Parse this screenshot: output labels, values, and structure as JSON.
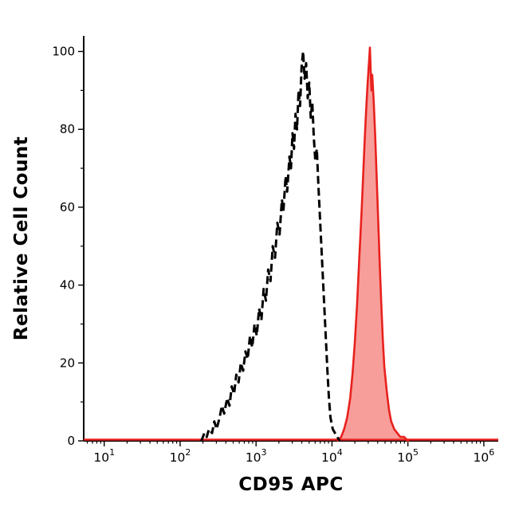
{
  "chart_data": {
    "type": "area",
    "title": "",
    "xlabel": "CD95 APC",
    "ylabel": "Relative Cell Count",
    "x_scale": "log",
    "xlim_log": [
      0.73,
      6.19
    ],
    "ylim": [
      0,
      104
    ],
    "x_ticks": [
      {
        "base": "10",
        "exp": "1",
        "value": 1
      },
      {
        "base": "10",
        "exp": "2",
        "value": 2
      },
      {
        "base": "10",
        "exp": "3",
        "value": 3
      },
      {
        "base": "10",
        "exp": "4",
        "value": 4
      },
      {
        "base": "10",
        "exp": "5",
        "value": 5
      },
      {
        "base": "10",
        "exp": "6",
        "value": 6
      }
    ],
    "y_ticks_major": [
      0,
      20,
      40,
      60,
      80,
      100
    ],
    "y_ticks_minor": [
      10,
      30,
      50,
      70,
      90
    ],
    "grid": false,
    "legend": "none",
    "colors": {
      "axis": "#000000",
      "black_dashed": "#000000",
      "red_stroke": "#e8211d",
      "red_fill": "rgba(240,62,55,0.5)"
    },
    "series": [
      {
        "name": "black_dashed_histogram",
        "style": "dashed",
        "points": [
          [
            2.28,
            0
          ],
          [
            2.32,
            2
          ],
          [
            2.35,
            1
          ],
          [
            2.38,
            3
          ],
          [
            2.42,
            2
          ],
          [
            2.45,
            5
          ],
          [
            2.48,
            3
          ],
          [
            2.52,
            6
          ],
          [
            2.55,
            9
          ],
          [
            2.58,
            7
          ],
          [
            2.62,
            11
          ],
          [
            2.65,
            9
          ],
          [
            2.68,
            14
          ],
          [
            2.71,
            12
          ],
          [
            2.74,
            17
          ],
          [
            2.77,
            15
          ],
          [
            2.8,
            20
          ],
          [
            2.83,
            18
          ],
          [
            2.86,
            23
          ],
          [
            2.89,
            21
          ],
          [
            2.92,
            27
          ],
          [
            2.95,
            24
          ],
          [
            2.98,
            30
          ],
          [
            3.01,
            27
          ],
          [
            3.04,
            34
          ],
          [
            3.07,
            31
          ],
          [
            3.1,
            39
          ],
          [
            3.13,
            36
          ],
          [
            3.16,
            44
          ],
          [
            3.19,
            41
          ],
          [
            3.22,
            50
          ],
          [
            3.25,
            47
          ],
          [
            3.28,
            56
          ],
          [
            3.31,
            53
          ],
          [
            3.34,
            62
          ],
          [
            3.36,
            59
          ],
          [
            3.39,
            68
          ],
          [
            3.41,
            64
          ],
          [
            3.44,
            73
          ],
          [
            3.46,
            70
          ],
          [
            3.48,
            79
          ],
          [
            3.5,
            75
          ],
          [
            3.52,
            84
          ],
          [
            3.54,
            80
          ],
          [
            3.56,
            90
          ],
          [
            3.58,
            86
          ],
          [
            3.6,
            96
          ],
          [
            3.62,
            100
          ],
          [
            3.64,
            93
          ],
          [
            3.66,
            97
          ],
          [
            3.68,
            88
          ],
          [
            3.7,
            92
          ],
          [
            3.72,
            83
          ],
          [
            3.74,
            87
          ],
          [
            3.76,
            78
          ],
          [
            3.78,
            72
          ],
          [
            3.8,
            75
          ],
          [
            3.82,
            66
          ],
          [
            3.84,
            58
          ],
          [
            3.86,
            50
          ],
          [
            3.88,
            42
          ],
          [
            3.9,
            34
          ],
          [
            3.92,
            26
          ],
          [
            3.94,
            18
          ],
          [
            3.96,
            11
          ],
          [
            3.98,
            6
          ],
          [
            4.01,
            3
          ],
          [
            4.04,
            2
          ],
          [
            4.07,
            1
          ],
          [
            4.1,
            0
          ]
        ]
      },
      {
        "name": "red_filled_histogram",
        "style": "solid-filled",
        "points": [
          [
            4.08,
            0
          ],
          [
            4.12,
            1
          ],
          [
            4.16,
            3
          ],
          [
            4.2,
            6
          ],
          [
            4.24,
            11
          ],
          [
            4.27,
            17
          ],
          [
            4.3,
            25
          ],
          [
            4.33,
            35
          ],
          [
            4.36,
            47
          ],
          [
            4.39,
            59
          ],
          [
            4.41,
            68
          ],
          [
            4.43,
            77
          ],
          [
            4.45,
            85
          ],
          [
            4.47,
            92
          ],
          [
            4.49,
            98
          ],
          [
            4.5,
            101
          ],
          [
            4.51,
            95
          ],
          [
            4.52,
            90
          ],
          [
            4.53,
            94
          ],
          [
            4.55,
            87
          ],
          [
            4.57,
            78
          ],
          [
            4.59,
            67
          ],
          [
            4.61,
            56
          ],
          [
            4.63,
            45
          ],
          [
            4.65,
            35
          ],
          [
            4.67,
            26
          ],
          [
            4.69,
            19
          ],
          [
            4.72,
            13
          ],
          [
            4.75,
            8
          ],
          [
            4.78,
            5
          ],
          [
            4.82,
            3
          ],
          [
            4.86,
            2
          ],
          [
            4.9,
            1
          ],
          [
            4.95,
            1
          ],
          [
            5.0,
            0
          ]
        ]
      },
      {
        "name": "red_baseline",
        "style": "solid",
        "points": [
          [
            0.73,
            0
          ],
          [
            6.19,
            0
          ]
        ]
      }
    ]
  }
}
